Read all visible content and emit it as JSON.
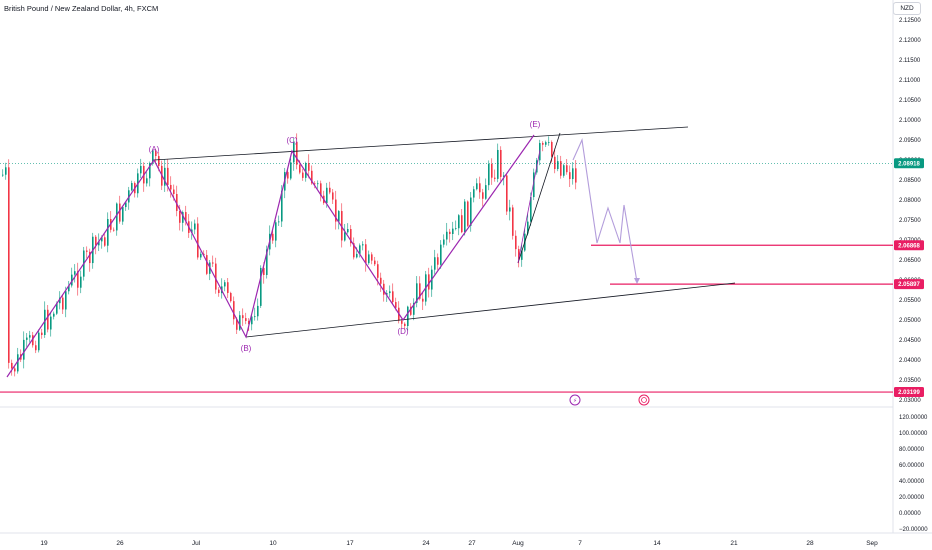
{
  "chart_data": {
    "type": "candlestick",
    "title": "British Pound / New Zealand Dollar, 4h, FXCM",
    "currency": "NZD",
    "price_axis": {
      "ticks": [
        "2.12500",
        "2.12000",
        "2.11500",
        "2.11000",
        "2.10500",
        "2.10000",
        "2.09500",
        "2.09000",
        "2.08500",
        "2.08000",
        "2.07500",
        "2.07000",
        "2.06500",
        "2.06000",
        "2.05500",
        "2.05000",
        "2.04500",
        "2.04000",
        "2.03500",
        "2.03000"
      ],
      "range": [
        2.028,
        2.128
      ]
    },
    "indicator_axis": {
      "ticks": [
        "120.00000",
        "100.00000",
        "80.00000",
        "60.00000",
        "40.00000",
        "20.00000",
        "0.00000",
        "−20.00000"
      ]
    },
    "time_axis": {
      "ticks": [
        "19",
        "26",
        "Jul",
        "10",
        "17",
        "24",
        "27",
        "Aug",
        "7",
        "14",
        "21",
        "28",
        "Sep"
      ]
    },
    "price_tags": [
      {
        "label": "2.08918",
        "value": 2.08918,
        "color": "#089981"
      },
      {
        "label": "2.06868",
        "value": 2.06868,
        "color": "#e91e63"
      },
      {
        "label": "2.05897",
        "value": 2.05897,
        "color": "#e91e63"
      },
      {
        "label": "2.03199",
        "value": 2.03199,
        "color": "#e91e63"
      }
    ],
    "wave_points": [
      {
        "label": "(A)",
        "value": 2.0902
      },
      {
        "label": "(B)",
        "value": 2.0455
      },
      {
        "label": "(C)",
        "value": 2.092
      },
      {
        "label": "(D)",
        "value": 2.0495
      },
      {
        "label": "(E)",
        "value": 2.096
      }
    ],
    "colors": {
      "up": "#089981",
      "down": "#f23645",
      "wave": "#9c27b0",
      "level": "#e91e63",
      "trendline": "#131722"
    }
  }
}
